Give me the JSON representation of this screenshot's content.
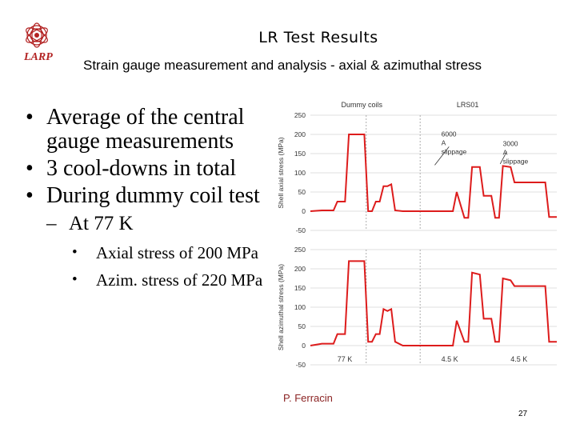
{
  "header": {
    "logo_text": "LARP",
    "title": "LR Test Results",
    "subtitle": "Strain gauge measurement and analysis - axial & azimuthal stress"
  },
  "bullets": [
    {
      "text": "Average of the central gauge measurements"
    },
    {
      "text": "3 cool-downs in total"
    },
    {
      "text": "During dummy coil test"
    }
  ],
  "sub_bullet": {
    "text": "At 77 K"
  },
  "sub_sub_bullets": [
    {
      "text": "Axial stress of 200 MPa"
    },
    {
      "text": "Azim. stress of 220 MPa"
    }
  ],
  "footer": {
    "author": "P. Ferracin",
    "page": "27"
  },
  "colors": {
    "trace": "#dd1c1c",
    "grid": "#d4d4d4",
    "logo": "#b22222",
    "author": "#8b2323"
  },
  "chart_data": [
    {
      "type": "line",
      "ylabel": "Shell axial stress (MPa)",
      "ylim": [
        -50,
        250
      ],
      "yticks": [
        "250",
        "200",
        "150",
        "100",
        "50",
        "0",
        "-50"
      ],
      "headers": [
        "Dummy coils",
        "LRS01"
      ],
      "annotations": [
        {
          "text": "6000 A slippage"
        },
        {
          "text": "3000 A slippage"
        }
      ],
      "series": [
        {
          "x": [
            0,
            3,
            6,
            7,
            9,
            10,
            14,
            15,
            16,
            17,
            18,
            19,
            20,
            21,
            22,
            24,
            25,
            26,
            28,
            29,
            31,
            32,
            34,
            35,
            36,
            37,
            38,
            40,
            41,
            42,
            44,
            45,
            47,
            48,
            49,
            50,
            52,
            53,
            55,
            56,
            60,
            61,
            62,
            64
          ],
          "values": [
            0,
            2,
            2,
            25,
            25,
            200,
            200,
            0,
            0,
            25,
            25,
            65,
            65,
            70,
            2,
            0,
            0,
            0,
            0,
            0,
            0,
            0,
            0,
            0,
            0,
            0,
            50,
            -17,
            -17,
            115,
            115,
            40,
            40,
            -17,
            -17,
            118,
            115,
            75,
            75,
            75,
            75,
            75,
            -15,
            -15
          ]
        }
      ]
    },
    {
      "type": "line",
      "ylabel": "Shell azimuthal stress (MPa)",
      "ylim": [
        -50,
        250
      ],
      "yticks": [
        "250",
        "200",
        "150",
        "100",
        "50",
        "0",
        "-50"
      ],
      "xlabels": [
        "77 K",
        "4.5 K",
        "4.5 K"
      ],
      "series": [
        {
          "x": [
            0,
            3,
            6,
            7,
            9,
            10,
            14,
            15,
            16,
            17,
            18,
            19,
            20,
            21,
            22,
            24,
            25,
            26,
            28,
            29,
            31,
            32,
            34,
            35,
            36,
            37,
            38,
            40,
            41,
            42,
            44,
            45,
            47,
            48,
            49,
            50,
            52,
            53,
            55,
            56,
            60,
            61,
            62,
            64
          ],
          "values": [
            0,
            5,
            5,
            30,
            30,
            220,
            220,
            10,
            10,
            30,
            30,
            95,
            90,
            95,
            10,
            0,
            0,
            0,
            0,
            0,
            0,
            0,
            0,
            0,
            0,
            0,
            65,
            10,
            10,
            190,
            185,
            70,
            70,
            10,
            10,
            175,
            170,
            155,
            155,
            155,
            155,
            155,
            10,
            10
          ]
        }
      ]
    }
  ]
}
